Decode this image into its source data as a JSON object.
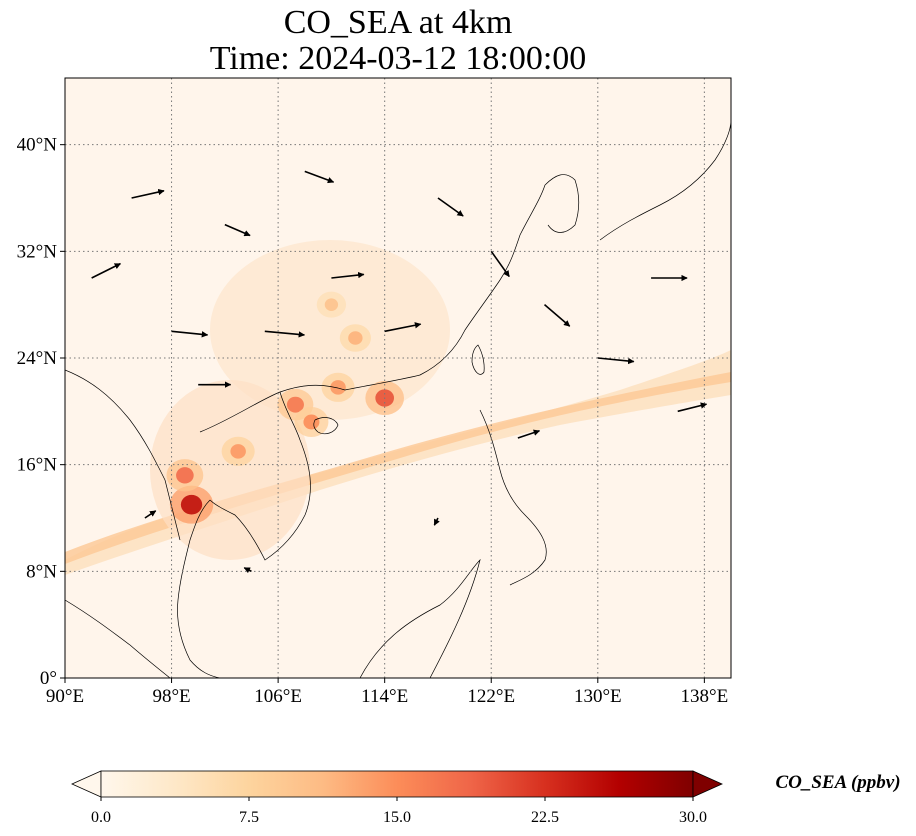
{
  "title": {
    "line1": "CO_SEA at 4km",
    "line2": "Time: 2024-03-12 18:00:00"
  },
  "map": {
    "projection": "PlateCarree",
    "lon_range": [
      90,
      140
    ],
    "lat_range": [
      0,
      45
    ],
    "gridlines": "dotted",
    "background_color": "#fff5eb"
  },
  "axes": {
    "x_ticks": [
      {
        "value": 90,
        "label": "90°E"
      },
      {
        "value": 98,
        "label": "98°E"
      },
      {
        "value": 106,
        "label": "106°E"
      },
      {
        "value": 114,
        "label": "114°E"
      },
      {
        "value": 122,
        "label": "122°E"
      },
      {
        "value": 130,
        "label": "130°E"
      },
      {
        "value": 138,
        "label": "138°E"
      }
    ],
    "y_ticks": [
      {
        "value": 0,
        "label": "0°"
      },
      {
        "value": 8,
        "label": "8°N"
      },
      {
        "value": 16,
        "label": "16°N"
      },
      {
        "value": 24,
        "label": "24°N"
      },
      {
        "value": 32,
        "label": "32°N"
      },
      {
        "value": 40,
        "label": "40°N"
      }
    ]
  },
  "colorbar": {
    "label": "CO_SEA (ppbv)",
    "colormap": "OrRd",
    "range": [
      0,
      30
    ],
    "extend": "both",
    "ticks": [
      "0.0",
      "7.5",
      "15.0",
      "22.5",
      "30.0"
    ],
    "stops": [
      "#fff7ec",
      "#fee8c8",
      "#fdd49e",
      "#fdbb84",
      "#fc8d59",
      "#ef6548",
      "#d7301f",
      "#b30000",
      "#7f0000"
    ]
  },
  "chart_data": {
    "type": "heatmap",
    "variable": "CO_SEA",
    "units": "ppbv",
    "level": "4km",
    "time": "2024-03-12 18:00:00",
    "hotspots": [
      {
        "lon": 99.5,
        "lat": 13.0,
        "value": 25
      },
      {
        "lon": 99.0,
        "lat": 15.2,
        "value": 18
      },
      {
        "lon": 103.0,
        "lat": 17.0,
        "value": 14
      },
      {
        "lon": 107.3,
        "lat": 20.5,
        "value": 17
      },
      {
        "lon": 108.5,
        "lat": 19.2,
        "value": 15
      },
      {
        "lon": 110.5,
        "lat": 21.8,
        "value": 14
      },
      {
        "lon": 114.0,
        "lat": 21.0,
        "value": 20
      },
      {
        "lon": 111.8,
        "lat": 25.5,
        "value": 12
      },
      {
        "lon": 110.0,
        "lat": 28.0,
        "value": 10
      }
    ],
    "plume_band": {
      "description": "CO plume extending from the Andaman Sea east across the South China Sea to the western Pacific",
      "value": 6
    },
    "wind_vectors": [
      {
        "lon": 92,
        "lat": 30,
        "u": 8,
        "v": 4
      },
      {
        "lon": 95,
        "lat": 36,
        "u": 9,
        "v": 2
      },
      {
        "lon": 98,
        "lat": 26,
        "u": 10,
        "v": -1
      },
      {
        "lon": 100,
        "lat": 22,
        "u": 9,
        "v": 0
      },
      {
        "lon": 102,
        "lat": 34,
        "u": 7,
        "v": -3
      },
      {
        "lon": 105,
        "lat": 26,
        "u": 11,
        "v": -1
      },
      {
        "lon": 108,
        "lat": 38,
        "u": 8,
        "v": -3
      },
      {
        "lon": 110,
        "lat": 30,
        "u": 9,
        "v": 1
      },
      {
        "lon": 114,
        "lat": 26,
        "u": 10,
        "v": 2
      },
      {
        "lon": 118,
        "lat": 36,
        "u": 7,
        "v": -5
      },
      {
        "lon": 122,
        "lat": 32,
        "u": 5,
        "v": -7
      },
      {
        "lon": 126,
        "lat": 28,
        "u": 7,
        "v": -6
      },
      {
        "lon": 130,
        "lat": 24,
        "u": 10,
        "v": -1
      },
      {
        "lon": 134,
        "lat": 30,
        "u": 10,
        "v": 0
      },
      {
        "lon": 136,
        "lat": 20,
        "u": 8,
        "v": 2
      },
      {
        "lon": 96,
        "lat": 12,
        "u": 3,
        "v": 2
      },
      {
        "lon": 104,
        "lat": 8,
        "u": -2,
        "v": 1
      },
      {
        "lon": 118,
        "lat": 12,
        "u": -1,
        "v": -2
      },
      {
        "lon": 124,
        "lat": 18,
        "u": 6,
        "v": 2
      }
    ]
  }
}
